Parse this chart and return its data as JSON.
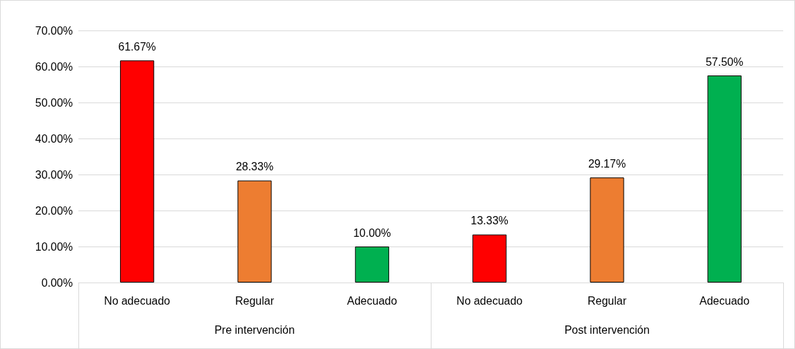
{
  "chart_data": {
    "type": "bar",
    "categories": [
      "No adecuado",
      "Regular",
      "Adecuado",
      "No adecuado",
      "Regular",
      "Adecuado"
    ],
    "values": [
      61.67,
      28.33,
      10.0,
      13.33,
      29.17,
      57.5
    ],
    "colors": [
      "#ff0000",
      "#ed7d31",
      "#00b050",
      "#ff0000",
      "#ed7d31",
      "#00b050"
    ],
    "value_labels": [
      "61.67%",
      "28.33%",
      "10.00%",
      "13.33%",
      "29.17%",
      "57.50%"
    ],
    "annotations": [
      "Pre intervención",
      "Post intervención"
    ],
    "ylim": [
      0,
      70
    ],
    "yticks": [
      {
        "value": 0,
        "label": "0.00%"
      },
      {
        "value": 10,
        "label": "10.00%"
      },
      {
        "value": 20,
        "label": "20.00%"
      },
      {
        "value": 30,
        "label": "30.00%"
      },
      {
        "value": 40,
        "label": "40.00%"
      },
      {
        "value": 50,
        "label": "50.00%"
      },
      {
        "value": 60,
        "label": "60.00%"
      },
      {
        "value": 70,
        "label": "70.00%"
      }
    ],
    "grid": "y"
  }
}
